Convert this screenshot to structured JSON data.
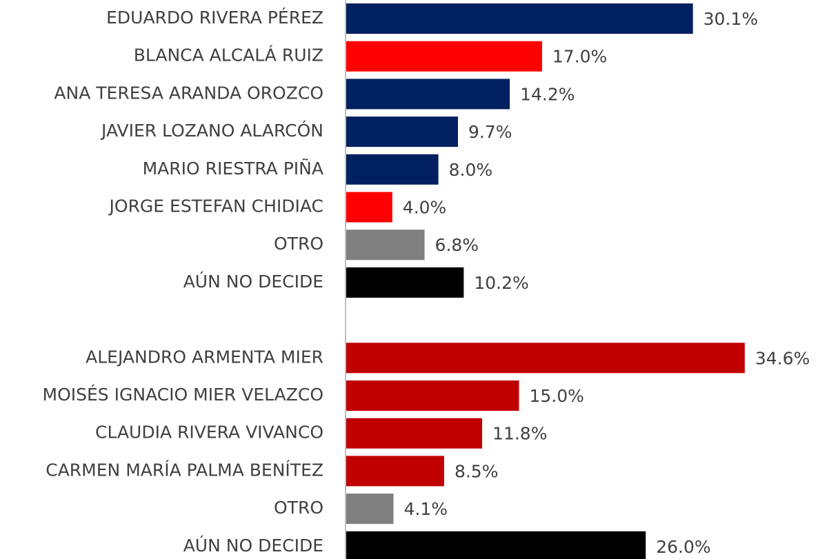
{
  "chart_data": {
    "type": "bar",
    "orientation": "horizontal",
    "categories": [
      "EDUARDO RIVERA PÉREZ",
      "BLANCA ALCALÁ RUIZ",
      "ANA TERESA ARANDA OROZCO",
      "JAVIER LOZANO ALARCÓN",
      "MARIO RIESTRA PIÑA",
      "JORGE ESTEFAN CHIDIAC",
      "OTRO",
      "AÚN NO DECIDE",
      null,
      "ALEJANDRO ARMENTA MIER",
      "MOISÉS IGNACIO MIER VELAZCO",
      "CLAUDIA RIVERA VIVANCO",
      "CARMEN MARÍA PALMA BENÍTEZ",
      "OTRO",
      "AÚN NO DECIDE"
    ],
    "values": [
      30.1,
      17.0,
      14.2,
      9.7,
      8.0,
      4.0,
      6.8,
      10.2,
      null,
      34.6,
      15.0,
      11.8,
      8.5,
      4.1,
      26.0
    ],
    "value_labels": [
      "30.1%",
      "17.0%",
      "14.2%",
      "9.7%",
      "8.0%",
      "4.0%",
      "6.8%",
      "10.2%",
      null,
      "34.6%",
      "15.0%",
      "11.8%",
      "8.5%",
      "4.1%",
      "26.0%"
    ],
    "colors": [
      "#002060",
      "#ff0000",
      "#002060",
      "#002060",
      "#002060",
      "#ff0000",
      "#808080",
      "#000000",
      null,
      "#c00000",
      "#c00000",
      "#c00000",
      "#c00000",
      "#808080",
      "#000000"
    ],
    "xlim": [
      0,
      40
    ]
  }
}
